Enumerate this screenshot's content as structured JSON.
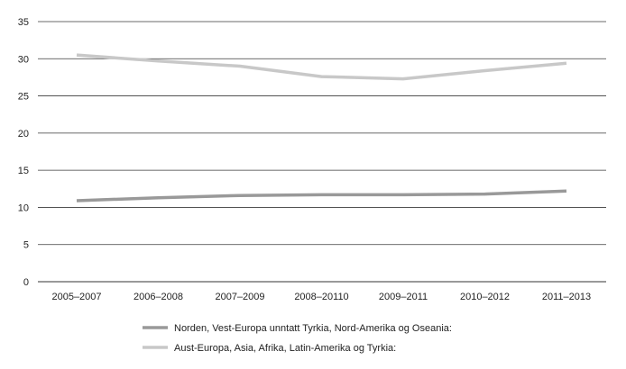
{
  "chart_data": {
    "type": "line",
    "title": "",
    "xlabel": "",
    "ylabel": "",
    "categories": [
      "2005–2007",
      "2006–2008",
      "2007–2009",
      "2008–20110",
      "2009–2011",
      "2010–2012",
      "2011–2013"
    ],
    "ylim": [
      0,
      35
    ],
    "yticks": [
      0,
      5,
      10,
      15,
      20,
      25,
      30,
      35
    ],
    "grid": true,
    "legend_position": "bottom",
    "series": [
      {
        "name": "Norden, Vest-Europa unntatt Tyrkia, Nord-Amerika og Oseania:",
        "values": [
          10.9,
          11.3,
          11.6,
          11.7,
          11.7,
          11.8,
          12.2
        ],
        "color": "#999999"
      },
      {
        "name": "Aust-Europa, Asia, Afrika, Latin-Amerika og Tyrkia:",
        "values": [
          30.5,
          29.7,
          29.0,
          27.6,
          27.3,
          28.4,
          29.4
        ],
        "color": "#c8c8c8"
      }
    ]
  }
}
